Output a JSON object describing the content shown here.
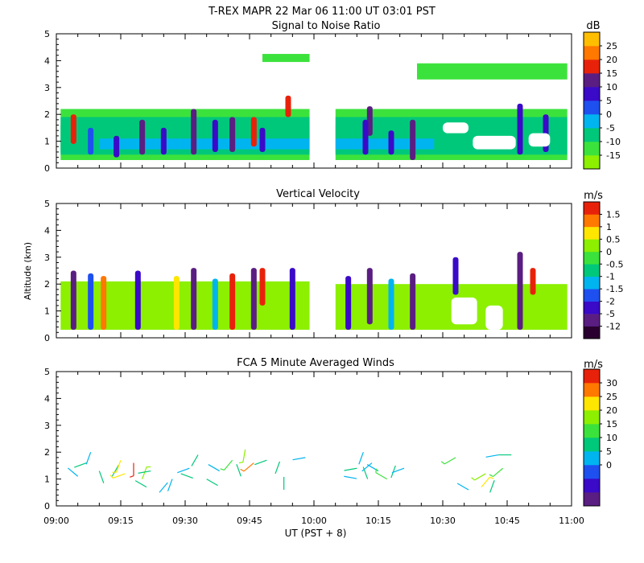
{
  "page": {
    "title": "T-REX   MAPR 22 Mar 06   11:00 UT   03:01   PST",
    "xlabel": "UT  (PST + 8)",
    "ylabel": "Altitude (km)"
  },
  "chart_data": [
    {
      "id": "snr",
      "type": "heatmap",
      "title": "Signal to Noise Ratio",
      "xlabel": "UT  (PST + 8)",
      "ylabel": "",
      "xlim": [
        "09:00",
        "11:00"
      ],
      "ylim": [
        0,
        5
      ],
      "y_ticks": [
        0,
        1,
        2,
        3,
        4,
        5
      ],
      "colorbar": {
        "unit": "dB",
        "labels": [
          "-15",
          "-10",
          "-5",
          "0",
          "5",
          "10",
          "15",
          "20",
          "25"
        ],
        "colors": [
          "#8cf000",
          "#3ce23c",
          "#00c87a",
          "#00b4f0",
          "#1e50f0",
          "#3a0ac8",
          "#5a1e82",
          "#e8220a",
          "#ff7800",
          "#ffbe00"
        ]
      },
      "data_gap": [
        "09:59",
        "10:05"
      ],
      "layers": [
        {
          "start": "09:01",
          "end": "09:59",
          "bottom_km": 0.3,
          "top_km": 2.2,
          "level": -12
        },
        {
          "start": "10:05",
          "end": "10:59",
          "bottom_km": 0.3,
          "top_km": 2.2,
          "level": -12
        },
        {
          "start": "09:01",
          "end": "09:59",
          "bottom_km": 0.5,
          "top_km": 1.9,
          "level": -9
        },
        {
          "start": "10:05",
          "end": "10:59",
          "bottom_km": 0.5,
          "top_km": 1.9,
          "level": -9
        },
        {
          "start": "09:01",
          "end": "09:59",
          "bottom_km": 0.6,
          "top_km": 1.6,
          "level": -7
        },
        {
          "start": "10:05",
          "end": "10:30",
          "bottom_km": 0.6,
          "top_km": 1.6,
          "level": -7
        },
        {
          "start": "09:10",
          "end": "09:59",
          "bottom_km": 0.7,
          "top_km": 1.1,
          "level": -4
        },
        {
          "start": "10:05",
          "end": "10:28",
          "bottom_km": 0.7,
          "top_km": 1.1,
          "level": -4
        },
        {
          "start": "09:48",
          "end": "09:59",
          "bottom_km": 3.95,
          "top_km": 4.25,
          "level": -14
        },
        {
          "start": "10:24",
          "end": "10:59",
          "bottom_km": 3.3,
          "top_km": 3.9,
          "level": -14
        }
      ],
      "cores": [
        {
          "time": "09:04",
          "bottom_km": 0.9,
          "top_km": 2.0,
          "peak_level": 17
        },
        {
          "time": "09:08",
          "bottom_km": 0.5,
          "top_km": 1.5,
          "peak_level": 3
        },
        {
          "time": "09:14",
          "bottom_km": 0.4,
          "top_km": 1.2,
          "peak_level": 6
        },
        {
          "time": "09:20",
          "bottom_km": 0.5,
          "top_km": 1.8,
          "peak_level": 10
        },
        {
          "time": "09:25",
          "bottom_km": 0.5,
          "top_km": 1.5,
          "peak_level": 7
        },
        {
          "time": "09:32",
          "bottom_km": 0.5,
          "top_km": 2.2,
          "peak_level": 12
        },
        {
          "time": "09:37",
          "bottom_km": 0.6,
          "top_km": 1.8,
          "peak_level": 8
        },
        {
          "time": "09:41",
          "bottom_km": 0.6,
          "top_km": 1.9,
          "peak_level": 10
        },
        {
          "time": "09:46",
          "bottom_km": 0.8,
          "top_km": 1.9,
          "peak_level": 17
        },
        {
          "time": "09:48",
          "bottom_km": 0.6,
          "top_km": 1.5,
          "peak_level": 6
        },
        {
          "time": "09:54",
          "bottom_km": 1.9,
          "top_km": 2.7,
          "peak_level": 17
        },
        {
          "time": "10:13",
          "bottom_km": 1.2,
          "top_km": 2.3,
          "peak_level": 10
        },
        {
          "time": "10:12",
          "bottom_km": 0.5,
          "top_km": 1.8,
          "peak_level": 8
        },
        {
          "time": "10:18",
          "bottom_km": 0.5,
          "top_km": 1.4,
          "peak_level": 6
        },
        {
          "time": "10:23",
          "bottom_km": 0.3,
          "top_km": 1.8,
          "peak_level": 10
        },
        {
          "time": "10:48",
          "bottom_km": 0.5,
          "top_km": 2.4,
          "peak_level": 7
        },
        {
          "time": "10:54",
          "bottom_km": 0.6,
          "top_km": 2.0,
          "peak_level": 6
        }
      ],
      "blank_regions": [
        {
          "start": "10:30",
          "end": "10:36",
          "bottom_km": 1.3,
          "top_km": 1.7
        },
        {
          "start": "10:37",
          "end": "10:47",
          "bottom_km": 0.7,
          "top_km": 1.2
        },
        {
          "start": "10:50",
          "end": "10:55",
          "bottom_km": 0.8,
          "top_km": 1.3
        }
      ]
    },
    {
      "id": "vv",
      "type": "heatmap",
      "title": "Vertical Velocity",
      "xlabel": "UT  (PST + 8)",
      "ylabel": "Altitude (km)",
      "xlim": [
        "09:00",
        "11:00"
      ],
      "ylim": [
        0,
        5
      ],
      "y_ticks": [
        0,
        1,
        2,
        3,
        4,
        5
      ],
      "colorbar": {
        "unit": "m/s",
        "labels": [
          "-12",
          "-5",
          "-2",
          "-1.5",
          "-1",
          "-0.5",
          "0",
          "0.5",
          "1",
          "1.5"
        ],
        "colors": [
          "#2a0030",
          "#5a1e82",
          "#3a0ac8",
          "#1e50f0",
          "#00b4f0",
          "#00c87a",
          "#3ce23c",
          "#8cf000",
          "#ffe600",
          "#ff7800",
          "#e8220a"
        ]
      },
      "data_gap": [
        "09:59",
        "10:05"
      ],
      "layers": [
        {
          "start": "09:01",
          "end": "09:59",
          "bottom_km": 0.3,
          "top_km": 2.1,
          "level": 0.2
        },
        {
          "start": "10:05",
          "end": "10:59",
          "bottom_km": 0.3,
          "top_km": 2.0,
          "level": 0.2
        }
      ],
      "cores": [
        {
          "time": "09:04",
          "bottom_km": 0.3,
          "top_km": 2.5,
          "peak_level": -8
        },
        {
          "time": "09:08",
          "bottom_km": 0.3,
          "top_km": 2.4,
          "peak_level": -1.7
        },
        {
          "time": "09:11",
          "bottom_km": 0.3,
          "top_km": 2.3,
          "peak_level": 1.2
        },
        {
          "time": "09:19",
          "bottom_km": 0.3,
          "top_km": 2.5,
          "peak_level": -3
        },
        {
          "time": "09:28",
          "bottom_km": 0.3,
          "top_km": 2.3,
          "peak_level": 0.8
        },
        {
          "time": "09:32",
          "bottom_km": 0.3,
          "top_km": 2.6,
          "peak_level": -8
        },
        {
          "time": "09:37",
          "bottom_km": 0.3,
          "top_km": 2.2,
          "peak_level": -1.2
        },
        {
          "time": "09:41",
          "bottom_km": 0.3,
          "top_km": 2.4,
          "peak_level": 1.6
        },
        {
          "time": "09:46",
          "bottom_km": 0.3,
          "top_km": 2.6,
          "peak_level": -8
        },
        {
          "time": "09:48",
          "bottom_km": 1.2,
          "top_km": 2.6,
          "peak_level": 1.6
        },
        {
          "time": "09:55",
          "bottom_km": 0.3,
          "top_km": 2.6,
          "peak_level": -3
        },
        {
          "time": "10:08",
          "bottom_km": 0.3,
          "top_km": 2.3,
          "peak_level": -2.5
        },
        {
          "time": "10:13",
          "bottom_km": 0.5,
          "top_km": 2.6,
          "peak_level": -8
        },
        {
          "time": "10:18",
          "bottom_km": 0.3,
          "top_km": 2.2,
          "peak_level": -1.2
        },
        {
          "time": "10:23",
          "bottom_km": 0.3,
          "top_km": 2.4,
          "peak_level": -8
        },
        {
          "time": "10:33",
          "bottom_km": 1.6,
          "top_km": 3.0,
          "peak_level": -3
        },
        {
          "time": "10:48",
          "bottom_km": 0.3,
          "top_km": 3.2,
          "peak_level": -8
        },
        {
          "time": "10:51",
          "bottom_km": 1.6,
          "top_km": 2.6,
          "peak_level": 1.6
        }
      ],
      "blank_regions": [
        {
          "start": "10:32",
          "end": "10:38",
          "bottom_km": 0.5,
          "top_km": 1.5
        },
        {
          "start": "10:40",
          "end": "10:44",
          "bottom_km": 0.3,
          "top_km": 1.2
        }
      ]
    },
    {
      "id": "winds",
      "type": "scatter",
      "title": "FCA 5 Minute Averaged Winds",
      "xlabel": "UT  (PST + 8)",
      "ylabel": "",
      "xlim": [
        "09:00",
        "11:00"
      ],
      "ylim": [
        0,
        5
      ],
      "y_ticks": [
        0,
        1,
        2,
        3,
        4,
        5
      ],
      "x_tick_labels": [
        "09:00",
        "09:15",
        "09:30",
        "09:45",
        "10:00",
        "10:15",
        "10:30",
        "10:45",
        "11:00"
      ],
      "colorbar": {
        "unit": "m/s",
        "labels": [
          "0",
          "5",
          "10",
          "15",
          "20",
          "25",
          "30"
        ],
        "colors": [
          "#5a1e82",
          "#3a0ac8",
          "#1e50f0",
          "#00b4f0",
          "#00c87a",
          "#3ce23c",
          "#8cf000",
          "#ffe600",
          "#ff7800",
          "#e8220a"
        ]
      },
      "series": [
        {
          "name": "wind barbs",
          "points": [
            {
              "t": 5.0,
              "alt": 1.1,
              "speed": 3,
              "dir": 310
            },
            {
              "t": 7.0,
              "alt": 1.6,
              "speed": 6,
              "dir": 250
            },
            {
              "t": 8.0,
              "alt": 2.0,
              "speed": 4,
              "dir": 200
            },
            {
              "t": 10.0,
              "alt": 1.3,
              "speed": 5,
              "dir": 160
            },
            {
              "t": 13.0,
              "alt": 1.1,
              "speed": 7,
              "dir": 30
            },
            {
              "t": 15.0,
              "alt": 1.7,
              "speed": 22,
              "dir": 200
            },
            {
              "t": 16.0,
              "alt": 1.2,
              "speed": 24,
              "dir": 250
            },
            {
              "t": 18.0,
              "alt": 1.6,
              "speed": 30,
              "dir": 180
            },
            {
              "t": 20.0,
              "alt": 1.0,
              "speed": 18,
              "dir": 20
            },
            {
              "t": 21.0,
              "alt": 0.7,
              "speed": 9,
              "dir": 300
            },
            {
              "t": 22.0,
              "alt": 1.3,
              "speed": 5,
              "dir": 260
            },
            {
              "t": 24.0,
              "alt": 0.5,
              "speed": 3,
              "dir": 40
            },
            {
              "t": 27.0,
              "alt": 1.0,
              "speed": 4,
              "dir": 200
            },
            {
              "t": 29.0,
              "alt": 1.2,
              "speed": 7,
              "dir": 110
            },
            {
              "t": 31.0,
              "alt": 1.4,
              "speed": 4,
              "dir": 250
            },
            {
              "t": 33.0,
              "alt": 1.9,
              "speed": 6,
              "dir": 210
            },
            {
              "t": 35.0,
              "alt": 1.0,
              "speed": 5,
              "dir": 120
            },
            {
              "t": 38.0,
              "alt": 1.3,
              "speed": 3,
              "dir": 300
            },
            {
              "t": 41.0,
              "alt": 1.7,
              "speed": 10,
              "dir": 220
            },
            {
              "t": 43.0,
              "alt": 1.1,
              "speed": 6,
              "dir": 340
            },
            {
              "t": 44.0,
              "alt": 2.1,
              "speed": 16,
              "dir": 190
            },
            {
              "t": 46.0,
              "alt": 1.6,
              "speed": 25,
              "dir": 230
            },
            {
              "t": 49.0,
              "alt": 1.7,
              "speed": 9,
              "dir": 250
            },
            {
              "t": 51.0,
              "alt": 1.2,
              "speed": 6,
              "dir": 20
            },
            {
              "t": 53.0,
              "alt": 0.6,
              "speed": 5,
              "dir": 0
            },
            {
              "t": 58.0,
              "alt": 1.8,
              "speed": 4,
              "dir": 260
            },
            {
              "t": 67.0,
              "alt": 1.1,
              "speed": 3,
              "dir": 100
            },
            {
              "t": 70.0,
              "alt": 1.4,
              "speed": 5,
              "dir": 260
            },
            {
              "t": 71.5,
              "alt": 2.0,
              "speed": 4,
              "dir": 200
            },
            {
              "t": 72.5,
              "alt": 1.0,
              "speed": 6,
              "dir": 340
            },
            {
              "t": 73.5,
              "alt": 1.6,
              "speed": 4,
              "dir": 230
            },
            {
              "t": 75.0,
              "alt": 1.3,
              "speed": 3,
              "dir": 300
            },
            {
              "t": 77.0,
              "alt": 1.0,
              "speed": 12,
              "dir": 300
            },
            {
              "t": 79.0,
              "alt": 1.5,
              "speed": 6,
              "dir": 200
            },
            {
              "t": 81.0,
              "alt": 1.4,
              "speed": 4,
              "dir": 250
            },
            {
              "t": 93.0,
              "alt": 1.8,
              "speed": 14,
              "dir": 240
            },
            {
              "t": 96.0,
              "alt": 0.6,
              "speed": 3,
              "dir": 300
            },
            {
              "t": 99.0,
              "alt": 0.7,
              "speed": 20,
              "dir": 40
            },
            {
              "t": 100.0,
              "alt": 1.2,
              "speed": 18,
              "dir": 240
            },
            {
              "t": 101.0,
              "alt": 0.5,
              "speed": 6,
              "dir": 20
            },
            {
              "t": 103.0,
              "alt": 1.9,
              "speed": 4,
              "dir": 260
            },
            {
              "t": 104.0,
              "alt": 1.4,
              "speed": 10,
              "dir": 230
            },
            {
              "t": 106.0,
              "alt": 1.9,
              "speed": 5,
              "dir": 270
            }
          ]
        }
      ]
    }
  ]
}
